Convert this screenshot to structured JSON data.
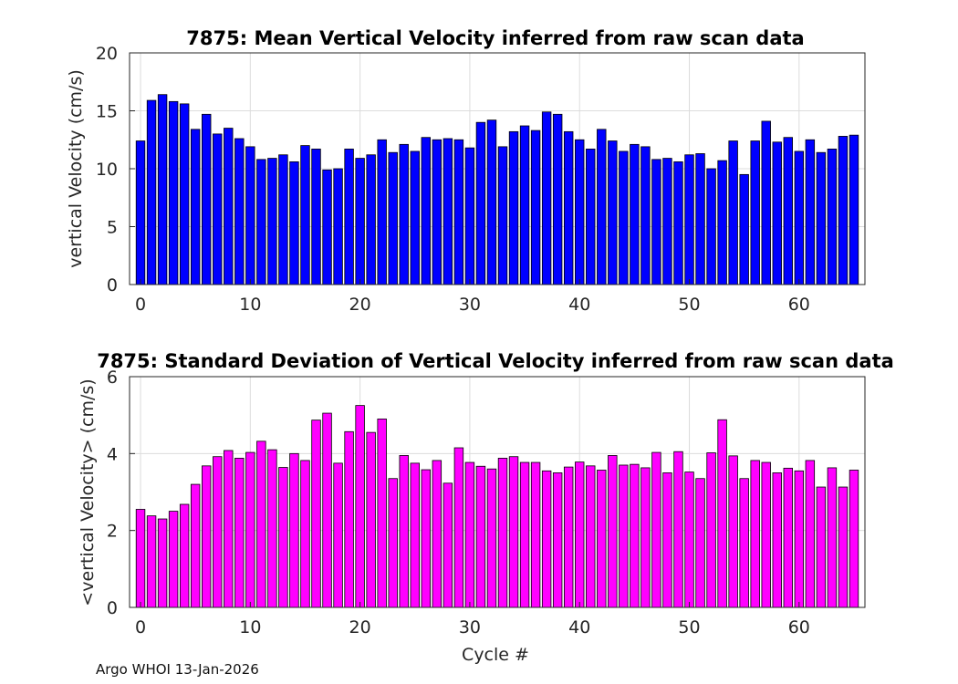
{
  "footer": "Argo WHOI 13-Jan-2026",
  "colors": {
    "mean_bar": "#0000ff",
    "std_bar": "#ff00ff"
  },
  "chart_data": [
    {
      "type": "bar",
      "title": "7875: Mean Vertical Velocity inferred from raw scan data",
      "xlabel": "",
      "ylabel": "vertical Velocity (cm/s)",
      "xlim": [
        -1,
        66
      ],
      "ylim": [
        0,
        20
      ],
      "xticks": [
        0,
        10,
        20,
        30,
        40,
        50,
        60
      ],
      "yticks": [
        0,
        5,
        10,
        15,
        20
      ],
      "grid": true,
      "x": [
        0,
        1,
        2,
        3,
        4,
        5,
        6,
        7,
        8,
        9,
        10,
        11,
        12,
        13,
        14,
        15,
        16,
        17,
        18,
        19,
        20,
        21,
        22,
        23,
        24,
        25,
        26,
        27,
        28,
        29,
        30,
        31,
        32,
        33,
        34,
        35,
        36,
        37,
        38,
        39,
        40,
        41,
        42,
        43,
        44,
        45,
        46,
        47,
        48,
        49,
        50,
        51,
        52,
        53,
        54,
        55,
        56,
        57,
        58,
        59,
        60,
        61,
        62,
        63,
        64,
        65
      ],
      "values": [
        12.4,
        15.9,
        16.4,
        15.8,
        15.6,
        13.4,
        14.7,
        13.0,
        13.5,
        12.6,
        11.9,
        10.8,
        10.9,
        11.2,
        10.6,
        12.0,
        11.7,
        9.9,
        10.0,
        11.7,
        10.9,
        11.2,
        12.5,
        11.4,
        12.1,
        11.5,
        12.7,
        12.5,
        12.6,
        12.5,
        11.8,
        14.0,
        14.2,
        11.9,
        13.2,
        13.7,
        13.3,
        14.9,
        14.7,
        13.2,
        12.5,
        11.7,
        13.4,
        12.4,
        11.5,
        12.1,
        11.9,
        10.8,
        10.9,
        10.6,
        11.2,
        11.3,
        10.0,
        10.7,
        12.4,
        9.5,
        12.4,
        14.1,
        12.3,
        12.7,
        11.5,
        12.5,
        11.4,
        11.7,
        12.8,
        12.9
      ]
    },
    {
      "type": "bar",
      "title": "7875: Standard Deviation of Vertical Velocity inferred from raw scan data",
      "xlabel": "Cycle #",
      "ylabel": "<vertical Velocity> (cm/s)",
      "xlim": [
        -1,
        66
      ],
      "ylim": [
        0,
        6
      ],
      "xticks": [
        0,
        10,
        20,
        30,
        40,
        50,
        60
      ],
      "yticks": [
        0,
        2,
        4,
        6
      ],
      "grid": true,
      "x": [
        0,
        1,
        2,
        3,
        4,
        5,
        6,
        7,
        8,
        9,
        10,
        11,
        12,
        13,
        14,
        15,
        16,
        17,
        18,
        19,
        20,
        21,
        22,
        23,
        24,
        25,
        26,
        27,
        28,
        29,
        30,
        31,
        32,
        33,
        34,
        35,
        36,
        37,
        38,
        39,
        40,
        41,
        42,
        43,
        44,
        45,
        46,
        47,
        48,
        49,
        50,
        51,
        52,
        53,
        54,
        55,
        56,
        57,
        58,
        59,
        60,
        61,
        62,
        63,
        64,
        65
      ],
      "values": [
        2.55,
        2.38,
        2.3,
        2.5,
        2.68,
        3.2,
        3.68,
        3.92,
        4.08,
        3.88,
        4.03,
        4.32,
        4.1,
        3.64,
        4.0,
        3.82,
        4.87,
        5.05,
        3.75,
        4.57,
        5.25,
        4.55,
        4.9,
        3.35,
        3.95,
        3.75,
        3.58,
        3.82,
        3.23,
        4.15,
        3.77,
        3.67,
        3.6,
        3.88,
        3.92,
        3.77,
        3.77,
        3.55,
        3.5,
        3.65,
        3.78,
        3.68,
        3.57,
        3.95,
        3.7,
        3.72,
        3.63,
        4.03,
        3.5,
        4.05,
        3.52,
        3.35,
        4.02,
        4.88,
        3.94,
        3.35,
        3.82,
        3.77,
        3.5,
        3.62,
        3.55,
        3.82,
        3.13,
        3.63,
        3.13,
        3.57
      ]
    }
  ]
}
